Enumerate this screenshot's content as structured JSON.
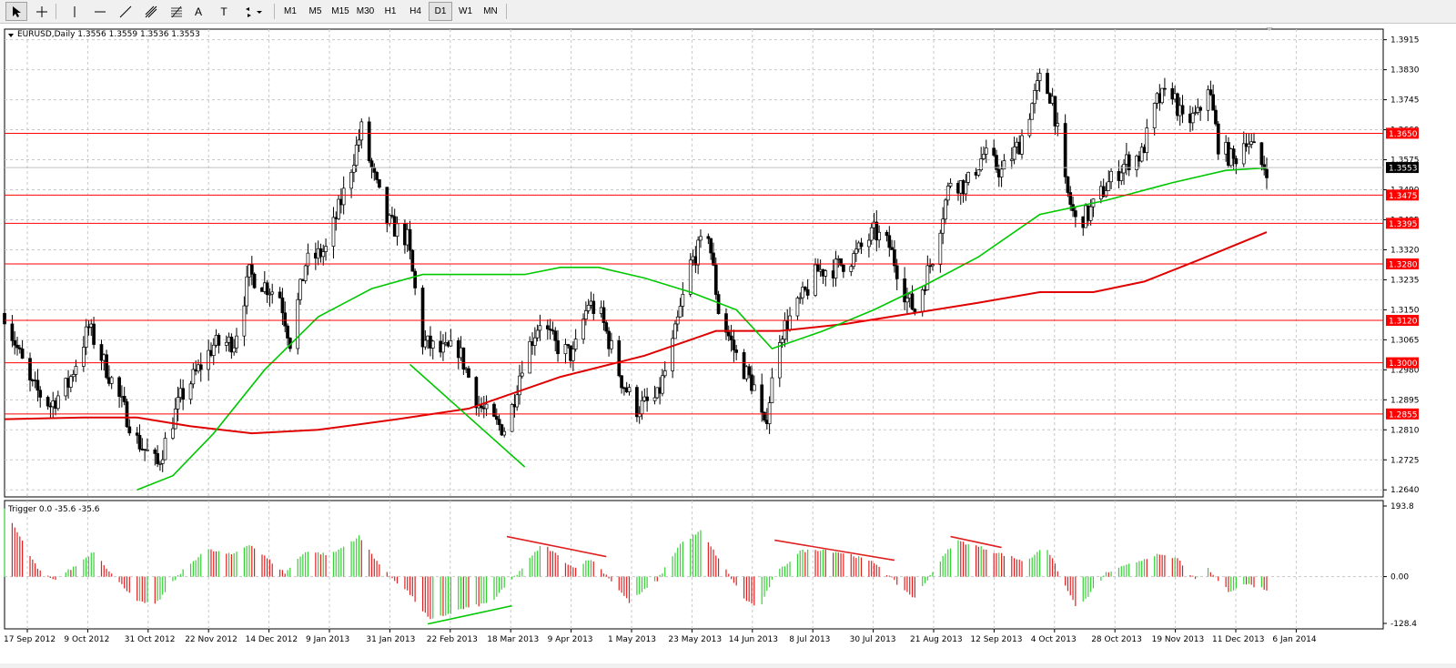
{
  "toolbar": {
    "tools": [
      {
        "name": "cursor-icon"
      },
      {
        "name": "crosshair-icon"
      },
      {
        "name": "vertical-line-icon"
      },
      {
        "name": "horizontal-line-icon"
      },
      {
        "name": "trendline-icon"
      },
      {
        "name": "equidistant-channel-icon"
      },
      {
        "name": "fibonacci-icon"
      },
      {
        "name": "text-icon",
        "label": "A"
      },
      {
        "name": "text-label-icon",
        "label": "T"
      },
      {
        "name": "arrows-dropdown-icon"
      }
    ],
    "timeframes": [
      "M1",
      "M5",
      "M15",
      "M30",
      "H1",
      "H4",
      "D1",
      "W1",
      "MN"
    ],
    "active_timeframe": "D1"
  },
  "main_header": {
    "symbol": "EURUSD,Daily",
    "ohlc": "1.3556 1.3559 1.3536 1.3553"
  },
  "sub_header": {
    "indicator": "Trigger 0.0 -35.6 -35.6"
  },
  "colors": {
    "bull": "#000000",
    "bear": "#000000",
    "level_line": "#ff0000",
    "ma_fast": "#00c800",
    "ma_slow": "#e00000",
    "osc_pos": "#34d034",
    "osc_neg": "#e02020",
    "grid": "#c8c8c8"
  },
  "chart_data": {
    "type": "candlestick",
    "symbol": "EURUSD",
    "timeframe": "Daily",
    "price_axis": {
      "ylim": [
        1.262,
        1.3945
      ],
      "ticks": [
        "1.3915",
        "1.3830",
        "1.3745",
        "1.3660",
        "1.3575",
        "1.3490",
        "1.3405",
        "1.3320",
        "1.3235",
        "1.3150",
        "1.3065",
        "1.2980",
        "1.2895",
        "1.2810",
        "1.2725",
        "1.2640"
      ]
    },
    "date_labels": [
      "17 Sep 2012",
      "9 Oct 2012",
      "31 Oct 2012",
      "22 Nov 2012",
      "14 Dec 2012",
      "9 Jan 2013",
      "31 Jan 2013",
      "22 Feb 2013",
      "18 Mar 2013",
      "9 Apr 2013",
      "1 May 2013",
      "23 May 2013",
      "14 Jun 2013",
      "8 Jul 2013",
      "30 Jul 2013",
      "21 Aug 2013",
      "12 Sep 2013",
      "4 Oct 2013",
      "28 Oct 2013",
      "19 Nov 2013",
      "11 Dec 2013",
      "6 Jan 2014"
    ],
    "date_range": [
      "2012-09-14",
      "2014-01-22"
    ],
    "current_price": "1.3553",
    "levels": [
      "1.3650",
      "1.3475",
      "1.3395",
      "1.3280",
      "1.3120",
      "1.3000",
      "1.2855"
    ],
    "price_path": [
      {
        "d": "2012-09-14",
        "p": 1.314
      },
      {
        "d": "2012-09-24",
        "p": 1.294
      },
      {
        "d": "2012-10-02",
        "p": 1.288
      },
      {
        "d": "2012-10-09",
        "p": 1.294
      },
      {
        "d": "2012-10-17",
        "p": 1.31
      },
      {
        "d": "2012-10-26",
        "p": 1.295
      },
      {
        "d": "2012-11-05",
        "p": 1.278
      },
      {
        "d": "2012-11-13",
        "p": 1.271
      },
      {
        "d": "2012-11-22",
        "p": 1.29
      },
      {
        "d": "2012-12-05",
        "p": 1.305
      },
      {
        "d": "2012-12-13",
        "p": 1.306
      },
      {
        "d": "2012-12-19",
        "p": 1.325
      },
      {
        "d": "2012-12-31",
        "p": 1.319
      },
      {
        "d": "2013-01-04",
        "p": 1.306
      },
      {
        "d": "2013-01-10",
        "p": 1.328
      },
      {
        "d": "2013-01-18",
        "p": 1.332
      },
      {
        "d": "2013-01-25",
        "p": 1.348
      },
      {
        "d": "2013-02-01",
        "p": 1.366
      },
      {
        "d": "2013-02-06",
        "p": 1.352
      },
      {
        "d": "2013-02-11",
        "p": 1.34
      },
      {
        "d": "2013-02-19",
        "p": 1.335
      },
      {
        "d": "2013-02-25",
        "p": 1.306
      },
      {
        "d": "2013-03-04",
        "p": 1.303
      },
      {
        "d": "2013-03-11",
        "p": 1.304
      },
      {
        "d": "2013-03-19",
        "p": 1.288
      },
      {
        "d": "2013-03-25",
        "p": 1.283
      },
      {
        "d": "2013-03-30",
        "p": 1.281
      },
      {
        "d": "2013-04-05",
        "p": 1.3
      },
      {
        "d": "2013-04-12",
        "p": 1.312
      },
      {
        "d": "2013-04-18",
        "p": 1.305
      },
      {
        "d": "2013-04-25",
        "p": 1.302
      },
      {
        "d": "2013-05-01",
        "p": 1.317
      },
      {
        "d": "2013-05-06",
        "p": 1.313
      },
      {
        "d": "2013-05-14",
        "p": 1.295
      },
      {
        "d": "2013-05-20",
        "p": 1.287
      },
      {
        "d": "2013-05-28",
        "p": 1.29
      },
      {
        "d": "2013-06-03",
        "p": 1.305
      },
      {
        "d": "2013-06-10",
        "p": 1.328
      },
      {
        "d": "2013-06-17",
        "p": 1.337
      },
      {
        "d": "2013-06-21",
        "p": 1.315
      },
      {
        "d": "2013-06-28",
        "p": 1.302
      },
      {
        "d": "2013-07-05",
        "p": 1.293
      },
      {
        "d": "2013-07-09",
        "p": 1.281
      },
      {
        "d": "2013-07-15",
        "p": 1.308
      },
      {
        "d": "2013-07-22",
        "p": 1.316
      },
      {
        "d": "2013-07-30",
        "p": 1.326
      },
      {
        "d": "2013-08-06",
        "p": 1.327
      },
      {
        "d": "2013-08-13",
        "p": 1.33
      },
      {
        "d": "2013-08-21",
        "p": 1.337
      },
      {
        "d": "2013-08-27",
        "p": 1.333
      },
      {
        "d": "2013-09-03",
        "p": 1.318
      },
      {
        "d": "2013-09-06",
        "p": 1.315
      },
      {
        "d": "2013-09-13",
        "p": 1.33
      },
      {
        "d": "2013-09-20",
        "p": 1.352
      },
      {
        "d": "2013-09-26",
        "p": 1.35
      },
      {
        "d": "2013-10-03",
        "p": 1.359
      },
      {
        "d": "2013-10-10",
        "p": 1.354
      },
      {
        "d": "2013-10-17",
        "p": 1.362
      },
      {
        "d": "2013-10-25",
        "p": 1.38
      },
      {
        "d": "2013-10-30",
        "p": 1.375
      },
      {
        "d": "2013-11-04",
        "p": 1.35
      },
      {
        "d": "2013-11-08",
        "p": 1.34
      },
      {
        "d": "2013-11-13",
        "p": 1.342
      },
      {
        "d": "2013-11-20",
        "p": 1.35
      },
      {
        "d": "2013-11-28",
        "p": 1.357
      },
      {
        "d": "2013-12-04",
        "p": 1.359
      },
      {
        "d": "2013-12-10",
        "p": 1.374
      },
      {
        "d": "2013-12-16",
        "p": 1.377
      },
      {
        "d": "2013-12-20",
        "p": 1.368
      },
      {
        "d": "2013-12-26",
        "p": 1.37
      },
      {
        "d": "2013-12-30",
        "p": 1.379
      },
      {
        "d": "2014-01-03",
        "p": 1.362
      },
      {
        "d": "2014-01-09",
        "p": 1.357
      },
      {
        "d": "2014-01-14",
        "p": 1.364
      },
      {
        "d": "2014-01-20",
        "p": 1.356
      },
      {
        "d": "2014-01-22",
        "p": 1.3553
      }
    ],
    "ma_fast": [
      {
        "d": "2012-11-05",
        "p": 1.264
      },
      {
        "d": "2012-11-19",
        "p": 1.268
      },
      {
        "d": "2012-12-05",
        "p": 1.28
      },
      {
        "d": "2012-12-25",
        "p": 1.298
      },
      {
        "d": "2013-01-15",
        "p": 1.313
      },
      {
        "d": "2013-02-05",
        "p": 1.321
      },
      {
        "d": "2013-02-25",
        "p": 1.325
      },
      {
        "d": "2013-03-20",
        "p": 1.325
      },
      {
        "d": "2013-04-06",
        "p": 1.325
      },
      {
        "d": "2013-04-20",
        "p": 1.327
      },
      {
        "d": "2013-05-05",
        "p": 1.327
      },
      {
        "d": "2013-05-23",
        "p": 1.324
      },
      {
        "d": "2013-06-10",
        "p": 1.32
      },
      {
        "d": "2013-06-28",
        "p": 1.315
      },
      {
        "d": "2013-07-12",
        "p": 1.304
      },
      {
        "d": "2013-08-01",
        "p": 1.309
      },
      {
        "d": "2013-08-21",
        "p": 1.315
      },
      {
        "d": "2013-09-10",
        "p": 1.322
      },
      {
        "d": "2013-10-01",
        "p": 1.33
      },
      {
        "d": "2013-10-25",
        "p": 1.342
      },
      {
        "d": "2013-11-20",
        "p": 1.346
      },
      {
        "d": "2013-12-16",
        "p": 1.351
      },
      {
        "d": "2014-01-06",
        "p": 1.3545
      },
      {
        "d": "2014-01-22",
        "p": 1.3552
      }
    ],
    "ma_slow": [
      {
        "d": "2012-09-14",
        "p": 1.284
      },
      {
        "d": "2012-10-15",
        "p": 1.2845
      },
      {
        "d": "2012-11-05",
        "p": 1.2845
      },
      {
        "d": "2012-11-26",
        "p": 1.282
      },
      {
        "d": "2012-12-20",
        "p": 1.28
      },
      {
        "d": "2013-01-15",
        "p": 1.281
      },
      {
        "d": "2013-02-15",
        "p": 1.284
      },
      {
        "d": "2013-03-15",
        "p": 1.287
      },
      {
        "d": "2013-04-20",
        "p": 1.296
      },
      {
        "d": "2013-05-23",
        "p": 1.302
      },
      {
        "d": "2013-06-20",
        "p": 1.309
      },
      {
        "d": "2013-07-15",
        "p": 1.309
      },
      {
        "d": "2013-08-10",
        "p": 1.311
      },
      {
        "d": "2013-09-05",
        "p": 1.314
      },
      {
        "d": "2013-10-01",
        "p": 1.317
      },
      {
        "d": "2013-10-25",
        "p": 1.32
      },
      {
        "d": "2013-11-15",
        "p": 1.32
      },
      {
        "d": "2013-12-05",
        "p": 1.323
      },
      {
        "d": "2013-12-26",
        "p": 1.329
      },
      {
        "d": "2014-01-22",
        "p": 1.337
      }
    ],
    "oscillator": {
      "name": "Trigger",
      "ylim": [
        -128.4,
        193.8
      ],
      "ticks": [
        "193.8",
        "0.00",
        "-128.4"
      ],
      "path": [
        {
          "d": "2012-09-14",
          "v": 185
        },
        {
          "d": "2012-09-27",
          "v": 20
        },
        {
          "d": "2012-10-03",
          "v": -10
        },
        {
          "d": "2012-10-12",
          "v": 30
        },
        {
          "d": "2012-10-19",
          "v": 70
        },
        {
          "d": "2012-10-28",
          "v": -10
        },
        {
          "d": "2012-11-06",
          "v": -70
        },
        {
          "d": "2012-11-12",
          "v": -78
        },
        {
          "d": "2012-11-22",
          "v": 10
        },
        {
          "d": "2012-12-02",
          "v": 75
        },
        {
          "d": "2012-12-12",
          "v": 60
        },
        {
          "d": "2012-12-19",
          "v": 90
        },
        {
          "d": "2013-01-02",
          "v": 10
        },
        {
          "d": "2013-01-10",
          "v": 70
        },
        {
          "d": "2013-01-20",
          "v": 60
        },
        {
          "d": "2013-01-31",
          "v": 110
        },
        {
          "d": "2013-02-10",
          "v": 15
        },
        {
          "d": "2013-02-19",
          "v": -40
        },
        {
          "d": "2013-02-28",
          "v": -120
        },
        {
          "d": "2013-03-12",
          "v": -90
        },
        {
          "d": "2013-03-24",
          "v": -70
        },
        {
          "d": "2013-04-04",
          "v": 15
        },
        {
          "d": "2013-04-13",
          "v": 90
        },
        {
          "d": "2013-04-25",
          "v": 25
        },
        {
          "d": "2013-05-02",
          "v": 48
        },
        {
          "d": "2013-05-08",
          "v": 5
        },
        {
          "d": "2013-05-17",
          "v": -70
        },
        {
          "d": "2013-05-28",
          "v": -10
        },
        {
          "d": "2013-06-06",
          "v": 90
        },
        {
          "d": "2013-06-14",
          "v": 125
        },
        {
          "d": "2013-06-21",
          "v": 50
        },
        {
          "d": "2013-07-01",
          "v": -60
        },
        {
          "d": "2013-07-07",
          "v": -90
        },
        {
          "d": "2013-07-13",
          "v": 5
        },
        {
          "d": "2013-07-23",
          "v": 70
        },
        {
          "d": "2013-08-01",
          "v": 75
        },
        {
          "d": "2013-08-12",
          "v": 60
        },
        {
          "d": "2013-08-22",
          "v": 35
        },
        {
          "d": "2013-08-30",
          "v": -20
        },
        {
          "d": "2013-09-06",
          "v": -60
        },
        {
          "d": "2013-09-14",
          "v": 25
        },
        {
          "d": "2013-09-22",
          "v": 100
        },
        {
          "d": "2013-10-02",
          "v": 80
        },
        {
          "d": "2013-10-11",
          "v": 60
        },
        {
          "d": "2013-10-20",
          "v": 40
        },
        {
          "d": "2013-10-27",
          "v": 90
        },
        {
          "d": "2013-11-05",
          "v": -40
        },
        {
          "d": "2013-11-09",
          "v": -90
        },
        {
          "d": "2013-11-20",
          "v": 10
        },
        {
          "d": "2013-11-30",
          "v": 35
        },
        {
          "d": "2013-12-09",
          "v": 60
        },
        {
          "d": "2013-12-18",
          "v": 50
        },
        {
          "d": "2013-12-25",
          "v": -10
        },
        {
          "d": "2013-12-30",
          "v": 20
        },
        {
          "d": "2014-01-07",
          "v": -40
        },
        {
          "d": "2014-01-14",
          "v": -20
        },
        {
          "d": "2014-01-22",
          "v": -35.6
        }
      ],
      "current": -35.6
    },
    "annotations": [
      {
        "pane": "price",
        "color": "#00c800",
        "from": {
          "d": "2013-02-20",
          "p": 1.2995
        },
        "to": {
          "d": "2013-04-06",
          "p": 1.2705
        }
      },
      {
        "pane": "osc",
        "color": "#e02020",
        "from": {
          "d": "2013-03-30",
          "v": 110
        },
        "to": {
          "d": "2013-05-08",
          "v": 55
        }
      },
      {
        "pane": "osc",
        "color": "#e02020",
        "from": {
          "d": "2013-07-13",
          "v": 100
        },
        "to": {
          "d": "2013-08-29",
          "v": 45
        }
      },
      {
        "pane": "osc",
        "color": "#e02020",
        "from": {
          "d": "2013-09-20",
          "v": 110
        },
        "to": {
          "d": "2013-10-10",
          "v": 80
        }
      },
      {
        "pane": "osc",
        "color": "#00c800",
        "from": {
          "d": "2013-02-27",
          "v": -130
        },
        "to": {
          "d": "2013-04-01",
          "v": -80
        }
      }
    ]
  }
}
